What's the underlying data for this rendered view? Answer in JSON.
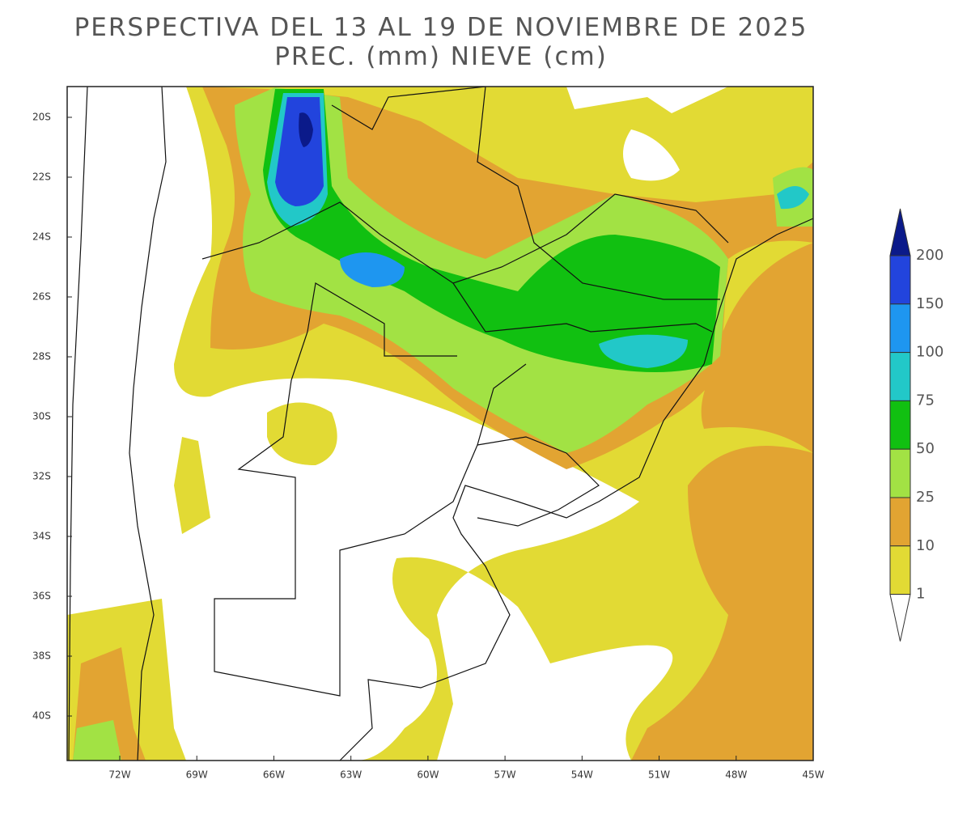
{
  "title": {
    "line1": "PERSPECTIVA DEL 13 AL 19 DE NOVIEMBRE DE 2025",
    "line2": "PREC. (mm) NIEVE (cm)"
  },
  "lat_labels": [
    "20S",
    "22S",
    "24S",
    "26S",
    "28S",
    "30S",
    "32S",
    "34S",
    "36S",
    "38S",
    "40S"
  ],
  "lon_labels": [
    "72W",
    "69W",
    "66W",
    "63W",
    "60W",
    "57W",
    "54W",
    "51W",
    "48W",
    "45W"
  ],
  "legend": {
    "levels": [
      200,
      150,
      100,
      75,
      50,
      25,
      10,
      1
    ],
    "colors": [
      "#0b1a8a",
      "#2244dd",
      "#1e96f0",
      "#22c8c8",
      "#11c011",
      "#a2e244",
      "#e2a432",
      "#e2da34",
      "#ffffff"
    ]
  }
}
